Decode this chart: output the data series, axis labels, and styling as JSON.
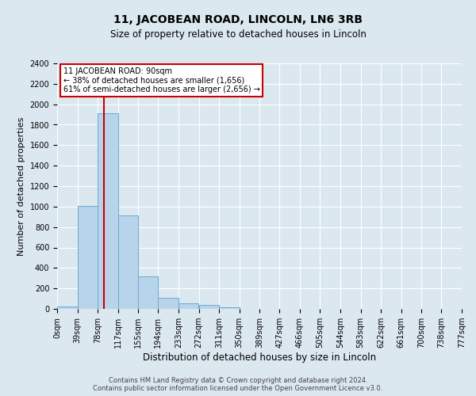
{
  "title": "11, JACOBEAN ROAD, LINCOLN, LN6 3RB",
  "subtitle": "Size of property relative to detached houses in Lincoln",
  "xlabel": "Distribution of detached houses by size in Lincoln",
  "ylabel": "Number of detached properties",
  "bar_color": "#b8d4ea",
  "bar_edge_color": "#6aaad4",
  "background_color": "#dce8f0",
  "fig_background_color": "#dce8f0",
  "grid_color": "#ffffff",
  "bin_edges": [
    0,
    39,
    78,
    117,
    155,
    194,
    233,
    272,
    311,
    350,
    389,
    427,
    466,
    505,
    544,
    583,
    622,
    661,
    700,
    738,
    777
  ],
  "bin_labels": [
    "0sqm",
    "39sqm",
    "78sqm",
    "117sqm",
    "155sqm",
    "194sqm",
    "233sqm",
    "272sqm",
    "311sqm",
    "350sqm",
    "389sqm",
    "427sqm",
    "466sqm",
    "505sqm",
    "544sqm",
    "583sqm",
    "622sqm",
    "661sqm",
    "700sqm",
    "738sqm",
    "777sqm"
  ],
  "bar_heights": [
    20,
    1010,
    1910,
    910,
    320,
    110,
    55,
    35,
    18,
    0,
    0,
    0,
    0,
    0,
    0,
    0,
    0,
    0,
    0,
    0
  ],
  "ylim": [
    0,
    2400
  ],
  "property_size": 90,
  "red_line_color": "#cc0000",
  "annotation_title": "11 JACOBEAN ROAD: 90sqm",
  "annotation_line1": "← 38% of detached houses are smaller (1,656)",
  "annotation_line2": "61% of semi-detached houses are larger (2,656) →",
  "annotation_box_color": "#ffffff",
  "annotation_box_edge": "#cc0000",
  "footer_line1": "Contains HM Land Registry data © Crown copyright and database right 2024.",
  "footer_line2": "Contains public sector information licensed under the Open Government Licence v3.0.",
  "yticks": [
    0,
    200,
    400,
    600,
    800,
    1000,
    1200,
    1400,
    1600,
    1800,
    2000,
    2200,
    2400
  ],
  "title_fontsize": 10,
  "subtitle_fontsize": 8.5,
  "ylabel_fontsize": 8,
  "xlabel_fontsize": 8.5,
  "tick_fontsize": 7,
  "annotation_fontsize": 7,
  "footer_fontsize": 6
}
